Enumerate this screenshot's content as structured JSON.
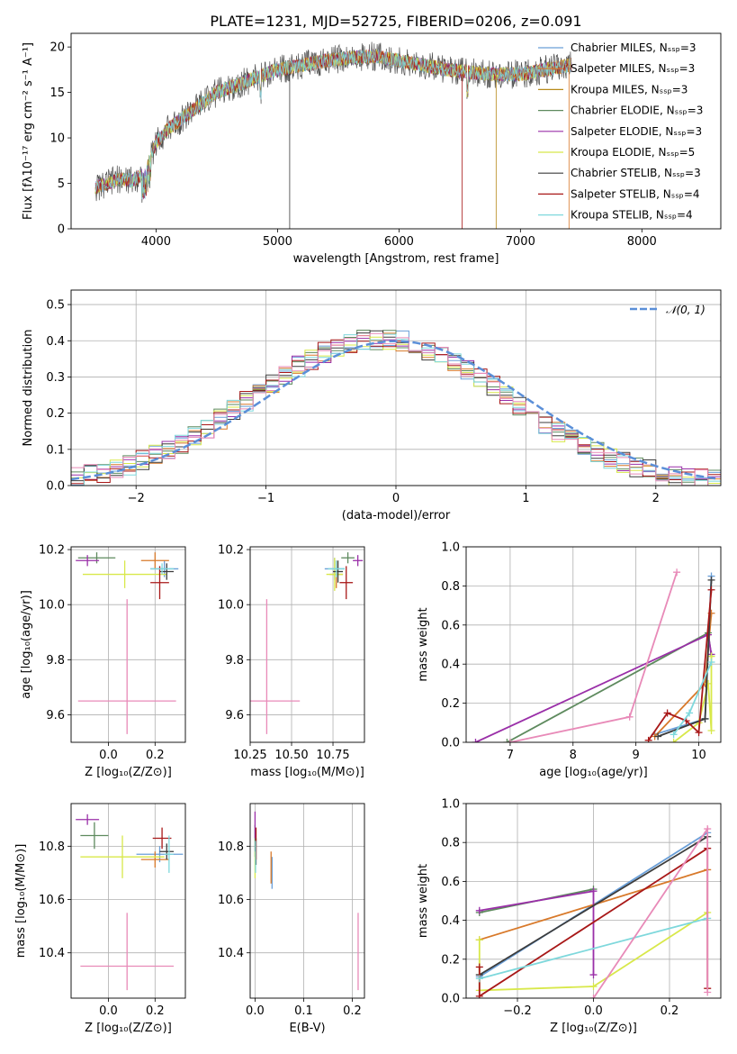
{
  "figure_title": "PLATE=1231, MJD=52725, FIBERID=0206, z=0.091",
  "series_colors": [
    "#6a9fd8",
    "#d8792a",
    "#b88a1a",
    "#5e8a5e",
    "#9a2fa8",
    "#d8e84a",
    "#3c3c3c",
    "#a81818",
    "#7ed8dc"
  ],
  "chart_data": [
    {
      "id": "spectrum",
      "type": "line",
      "xlabel": "wavelength [Angstrom, rest frame]",
      "ylabel": "Flux [fλ10⁻¹⁷ erg cm⁻² s⁻¹ A⁻¹]",
      "xlim": [
        3300,
        8650
      ],
      "ylim": [
        0,
        21.5
      ],
      "xticks": [
        4000,
        5000,
        6000,
        7000,
        8000
      ],
      "yticks": [
        0,
        5,
        10,
        15,
        20
      ],
      "grid": false,
      "legend": "top-right",
      "continuum": {
        "x": [
          3500,
          3600,
          3700,
          3800,
          3900,
          4000,
          4100,
          4200,
          4300,
          4400,
          4500,
          4600,
          4700,
          4800,
          4900,
          5000,
          5200,
          5400,
          5600,
          5800,
          6000,
          6200,
          6400,
          6600,
          6800,
          7000,
          7200,
          7400
        ],
        "y": [
          4.5,
          5.0,
          5.5,
          5.3,
          6.0,
          9.5,
          11.0,
          12.0,
          13.0,
          14.0,
          15.0,
          15.5,
          16.0,
          16.5,
          17.0,
          17.5,
          18.0,
          18.5,
          18.8,
          19.0,
          18.5,
          18.0,
          17.5,
          17.2,
          17.0,
          17.0,
          17.5,
          18.0
        ]
      },
      "series": [
        {
          "name": "Chabrier MILES, Nₛₛₚ=3"
        },
        {
          "name": "Salpeter MILES, Nₛₛₚ=3"
        },
        {
          "name": "Kroupa MILES, Nₛₛₚ=3"
        },
        {
          "name": "Chabrier ELODIE, Nₛₛₚ=3"
        },
        {
          "name": "Salpeter ELODIE, Nₛₛₚ=3"
        },
        {
          "name": "Kroupa ELODIE, Nₛₛₚ=5"
        },
        {
          "name": "Chabrier STELIB, Nₛₛₚ=3"
        },
        {
          "name": "Salpeter STELIB, Nₛₛₚ=4"
        },
        {
          "name": "Kroupa STELIB, Nₛₛₚ=4"
        }
      ]
    },
    {
      "id": "residuals",
      "type": "line",
      "xlabel": "(data-model)/error",
      "ylabel": "Normed distribution",
      "xlim": [
        -2.5,
        2.5
      ],
      "ylim": [
        0,
        0.54
      ],
      "xticks": [
        -2,
        -1,
        0,
        1,
        2
      ],
      "yticks": [
        0.0,
        0.1,
        0.2,
        0.3,
        0.4,
        0.5
      ],
      "grid": true,
      "legend": "top-right",
      "reference_label": "𝒩(0, 1)",
      "reference_color": "#5b8fd8",
      "bin_width": 0.1
    },
    {
      "id": "age-vs-Z",
      "type": "scatter",
      "xlabel": "Z [log₁₀(Z/Z⊙)]",
      "ylabel": "age  [log₁₀(age/yr)]",
      "xlim": [
        -0.16,
        0.33
      ],
      "ylim": [
        9.5,
        10.21
      ],
      "xticks": [
        0.0,
        0.2
      ],
      "yticks": [
        9.6,
        9.8,
        10.0,
        10.2
      ],
      "grid": true,
      "points": [
        {
          "c": 0,
          "x": 0.24,
          "xerr": 0.06,
          "y": 10.13,
          "yerr": 0.03
        },
        {
          "c": 1,
          "x": 0.2,
          "xerr": 0.06,
          "y": 10.16,
          "yerr": 0.03
        },
        {
          "c": 3,
          "x": -0.05,
          "xerr": 0.08,
          "y": 10.17,
          "yerr": 0.02
        },
        {
          "c": 4,
          "x": -0.09,
          "xerr": 0.05,
          "y": 10.16,
          "yerr": 0.02
        },
        {
          "c": 5,
          "x": 0.07,
          "xerr": 0.18,
          "y": 10.11,
          "yerr": 0.05
        },
        {
          "c": 6,
          "x": 0.25,
          "xerr": 0.03,
          "y": 10.12,
          "yerr": 0.03
        },
        {
          "c": 7,
          "x": 0.22,
          "xerr": 0.04,
          "y": 10.08,
          "yerr": 0.06
        },
        {
          "c": 8,
          "x": 0.23,
          "xerr": 0.05,
          "y": 10.13,
          "yerr": 0.02
        },
        {
          "c": 9,
          "x": 0.08,
          "xerr": 0.21,
          "y": 9.65,
          "yerr": 0.12,
          "yup": 0.37
        }
      ]
    },
    {
      "id": "age-vs-mass",
      "type": "scatter",
      "xlabel": "mass [log₁₀(M/M⊙)]",
      "ylabel": "",
      "xlim": [
        10.25,
        10.94
      ],
      "ylim": [
        9.5,
        10.21
      ],
      "xticks": [
        10.25,
        10.5,
        10.75
      ],
      "yticks": [
        9.6,
        9.8,
        10.0,
        10.2
      ],
      "grid": true,
      "points": [
        {
          "c": 0,
          "x": 10.76,
          "xerr": 0.06,
          "y": 10.13,
          "yerr": 0.04
        },
        {
          "c": 1,
          "x": 10.77,
          "xerr": 0.04,
          "y": 10.11,
          "yerr": 0.05
        },
        {
          "c": 3,
          "x": 10.84,
          "xerr": 0.04,
          "y": 10.17,
          "yerr": 0.02
        },
        {
          "c": 4,
          "x": 10.9,
          "xerr": 0.03,
          "y": 10.16,
          "yerr": 0.02
        },
        {
          "c": 5,
          "x": 10.76,
          "xerr": 0.05,
          "y": 10.11,
          "yerr": 0.06
        },
        {
          "c": 6,
          "x": 10.78,
          "xerr": 0.03,
          "y": 10.12,
          "yerr": 0.04
        },
        {
          "c": 7,
          "x": 10.83,
          "xerr": 0.04,
          "y": 10.08,
          "yerr": 0.06
        },
        {
          "c": 8,
          "x": 10.77,
          "xerr": 0.05,
          "y": 10.13,
          "yerr": 0.03
        },
        {
          "c": 9,
          "x": 10.35,
          "xerr": 0.2,
          "y": 9.65,
          "yerr": 0.12,
          "yup": 0.37
        }
      ]
    },
    {
      "id": "massweight-vs-age",
      "type": "line",
      "xlabel": "age  [log₁₀(age/yr)]",
      "ylabel": "mass weight",
      "xlim": [
        6.3,
        10.35
      ],
      "ylim": [
        0.0,
        1.0
      ],
      "xticks": [
        7,
        8,
        9,
        10
      ],
      "yticks": [
        0.0,
        0.2,
        0.4,
        0.6,
        0.8,
        1.0
      ],
      "grid": true,
      "series": [
        {
          "c": 0,
          "x": [
            9.3,
            10.1,
            10.2
          ],
          "y": [
            0.04,
            0.12,
            0.85
          ]
        },
        {
          "c": 1,
          "x": [
            9.3,
            10.1,
            10.2
          ],
          "y": [
            0.03,
            0.3,
            0.66
          ]
        },
        {
          "c": 3,
          "x": [
            6.95,
            10.15,
            10.2
          ],
          "y": [
            0.0,
            0.56,
            0.44
          ]
        },
        {
          "c": 4,
          "x": [
            6.45,
            10.15,
            10.2
          ],
          "y": [
            0.0,
            0.55,
            0.45
          ]
        },
        {
          "c": 5,
          "x": [
            9.6,
            10.0,
            10.15,
            10.2,
            10.2
          ],
          "y": [
            0.0,
            0.1,
            0.3,
            0.06,
            0.44
          ]
        },
        {
          "c": 6,
          "x": [
            9.35,
            10.1,
            10.2
          ],
          "y": [
            0.03,
            0.12,
            0.83
          ]
        },
        {
          "c": 7,
          "x": [
            9.2,
            9.5,
            9.8,
            10.0,
            10.2
          ],
          "y": [
            0.01,
            0.15,
            0.11,
            0.05,
            0.78
          ]
        },
        {
          "c": 8,
          "x": [
            9.6,
            9.85,
            10.2
          ],
          "y": [
            0.04,
            0.15,
            0.41
          ]
        },
        {
          "c": 9,
          "x": [
            7.0,
            8.9,
            9.65
          ],
          "y": [
            0.0,
            0.13,
            0.87
          ]
        }
      ]
    },
    {
      "id": "mass-vs-Z",
      "type": "scatter",
      "xlabel": "Z [log₁₀(Z/Z⊙)]",
      "ylabel": "mass [log₁₀(M/M⊙)]",
      "xlim": [
        -0.16,
        0.33
      ],
      "ylim": [
        10.23,
        10.96
      ],
      "xticks": [
        0.0,
        0.2
      ],
      "yticks": [
        10.4,
        10.6,
        10.8
      ],
      "grid": true,
      "points": [
        {
          "c": 0,
          "x": 0.22,
          "xerr": 0.1,
          "y": 10.77,
          "yerr": 0.03
        },
        {
          "c": 1,
          "x": 0.2,
          "xerr": 0.06,
          "y": 10.75,
          "yerr": 0.03
        },
        {
          "c": 3,
          "x": -0.06,
          "xerr": 0.06,
          "y": 10.84,
          "yerr": 0.05
        },
        {
          "c": 4,
          "x": -0.09,
          "xerr": 0.05,
          "y": 10.9,
          "yerr": 0.02
        },
        {
          "c": 5,
          "x": 0.06,
          "xerr": 0.18,
          "y": 10.76,
          "yerr": 0.08
        },
        {
          "c": 6,
          "x": 0.25,
          "xerr": 0.03,
          "y": 10.78,
          "yerr": 0.03
        },
        {
          "c": 7,
          "x": 0.23,
          "xerr": 0.04,
          "y": 10.83,
          "yerr": 0.04
        },
        {
          "c": 8,
          "x": 0.26,
          "xerr": 0.02,
          "y": 10.77,
          "yerr": 0.07
        },
        {
          "c": 9,
          "x": 0.08,
          "xerr": 0.2,
          "y": 10.35,
          "yerr": 0.09,
          "yup": 0.2
        }
      ]
    },
    {
      "id": "mass-vs-EBV",
      "type": "scatter",
      "xlabel": "E(B-V)",
      "ylabel": "",
      "xlim": [
        -0.01,
        0.225
      ],
      "ylim": [
        10.23,
        10.96
      ],
      "xticks": [
        0.0,
        0.1,
        0.2
      ],
      "yticks": [
        10.4,
        10.6,
        10.8
      ],
      "grid": true,
      "points": [
        {
          "c": 0,
          "x": 0.035,
          "xerr": 0.0,
          "y": 10.7,
          "yerr": 0.06
        },
        {
          "c": 1,
          "x": 0.033,
          "xerr": 0.0,
          "y": 10.72,
          "yerr": 0.06
        },
        {
          "c": 3,
          "x": 0.0,
          "xerr": 0.0,
          "y": 10.82,
          "yerr": 0.06
        },
        {
          "c": 4,
          "x": 0.0,
          "xerr": 0.0,
          "y": 10.88,
          "yerr": 0.05
        },
        {
          "c": 5,
          "x": 0.0,
          "xerr": 0.0,
          "y": 10.73,
          "yerr": 0.05
        },
        {
          "c": 6,
          "x": 0.002,
          "xerr": 0.0,
          "y": 10.78,
          "yerr": 0.05
        },
        {
          "c": 7,
          "x": 0.002,
          "xerr": 0.0,
          "y": 10.81,
          "yerr": 0.06
        },
        {
          "c": 8,
          "x": 0.001,
          "xerr": 0.0,
          "y": 10.76,
          "yerr": 0.06
        },
        {
          "c": 9,
          "x": 0.212,
          "xerr": 0.0,
          "y": 10.4,
          "yerr": 0.14,
          "yup": 0.15
        }
      ]
    },
    {
      "id": "massweight-vs-Z",
      "type": "line",
      "xlabel": "Z [log₁₀(Z/Z⊙)]",
      "ylabel": "mass weight",
      "xlim": [
        -0.335,
        0.335
      ],
      "ylim": [
        0.0,
        1.0
      ],
      "xticks": [
        -0.2,
        0.0,
        0.2
      ],
      "yticks": [
        0.0,
        0.2,
        0.4,
        0.6,
        0.8,
        1.0
      ],
      "grid": true,
      "series": [
        {
          "c": 0,
          "x": [
            -0.3,
            0.3
          ],
          "y": [
            0.11,
            0.85
          ]
        },
        {
          "c": 1,
          "x": [
            -0.3,
            0.3
          ],
          "y": [
            0.3,
            0.66
          ]
        },
        {
          "c": 3,
          "x": [
            -0.3,
            0.0
          ],
          "y": [
            0.44,
            0.56
          ]
        },
        {
          "c": 4,
          "x": [
            -0.3,
            0.0,
            0.0
          ],
          "y": [
            0.45,
            0.55,
            0.12
          ]
        },
        {
          "c": 5,
          "x": [
            -0.3,
            -0.3,
            0.0,
            0.3
          ],
          "y": [
            0.3,
            0.04,
            0.06,
            0.44
          ]
        },
        {
          "c": 6,
          "x": [
            -0.3,
            0.3
          ],
          "y": [
            0.12,
            0.83
          ]
        },
        {
          "c": 7,
          "x": [
            -0.3,
            -0.3,
            0.3,
            0.3
          ],
          "y": [
            0.16,
            0.01,
            0.77,
            0.05
          ]
        },
        {
          "c": 8,
          "x": [
            -0.3,
            0.3
          ],
          "y": [
            0.1,
            0.41
          ]
        },
        {
          "c": 9,
          "x": [
            0.0,
            0.3,
            0.3
          ],
          "y": [
            0.0,
            0.87,
            0.03
          ]
        }
      ]
    }
  ]
}
